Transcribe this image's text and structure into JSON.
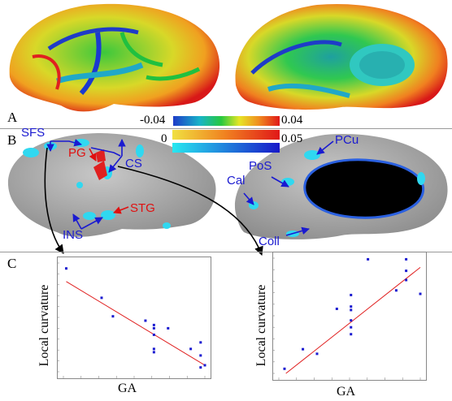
{
  "panels": {
    "a": "A",
    "b": "B",
    "c": "C"
  },
  "colorbar_a": {
    "min": "-0.04",
    "max": "0.04"
  },
  "colorbar_b": {
    "min": "0",
    "max": "0.05"
  },
  "labels": {
    "sfs": "SFS",
    "pg": "PG",
    "cs": "CS",
    "stg": "STG",
    "ins": "INS",
    "pcu": "PCu",
    "pos": "PoS",
    "cal": "Cal",
    "coll": "Coll"
  },
  "colors": {
    "blue_label": "#1a1ad0",
    "red_label": "#e01010",
    "fit_line": "#e02020",
    "points": "#1a1ad0"
  },
  "chart_data": [
    {
      "type": "scatter",
      "xlabel": "GA",
      "ylabel": "Local curvature",
      "points": [
        [
          0.02,
          0.95
        ],
        [
          0.27,
          0.68
        ],
        [
          0.35,
          0.51
        ],
        [
          0.58,
          0.47
        ],
        [
          0.64,
          0.43
        ],
        [
          0.64,
          0.4
        ],
        [
          0.64,
          0.34
        ],
        [
          0.64,
          0.21
        ],
        [
          0.64,
          0.18
        ],
        [
          0.74,
          0.4
        ],
        [
          0.9,
          0.21
        ],
        [
          0.97,
          0.27
        ],
        [
          0.97,
          0.15
        ],
        [
          0.97,
          0.04
        ],
        [
          1.0,
          0.06
        ]
      ],
      "fit_line": [
        [
          0.02,
          0.83
        ],
        [
          1.0,
          0.06
        ]
      ]
    },
    {
      "type": "scatter",
      "xlabel": "GA",
      "ylabel": "Local curvature",
      "points": [
        [
          0.04,
          0.04
        ],
        [
          0.17,
          0.21
        ],
        [
          0.27,
          0.17
        ],
        [
          0.41,
          0.56
        ],
        [
          0.51,
          0.46
        ],
        [
          0.51,
          0.55
        ],
        [
          0.51,
          0.58
        ],
        [
          0.51,
          0.68
        ],
        [
          0.51,
          0.4
        ],
        [
          0.51,
          0.34
        ],
        [
          0.63,
          0.99
        ],
        [
          0.83,
          0.72
        ],
        [
          0.9,
          0.89
        ],
        [
          0.9,
          0.81
        ],
        [
          0.9,
          0.99
        ],
        [
          1.0,
          0.69
        ]
      ],
      "fit_line": [
        [
          0.05,
          0.0
        ],
        [
          1.0,
          0.92
        ]
      ]
    }
  ]
}
